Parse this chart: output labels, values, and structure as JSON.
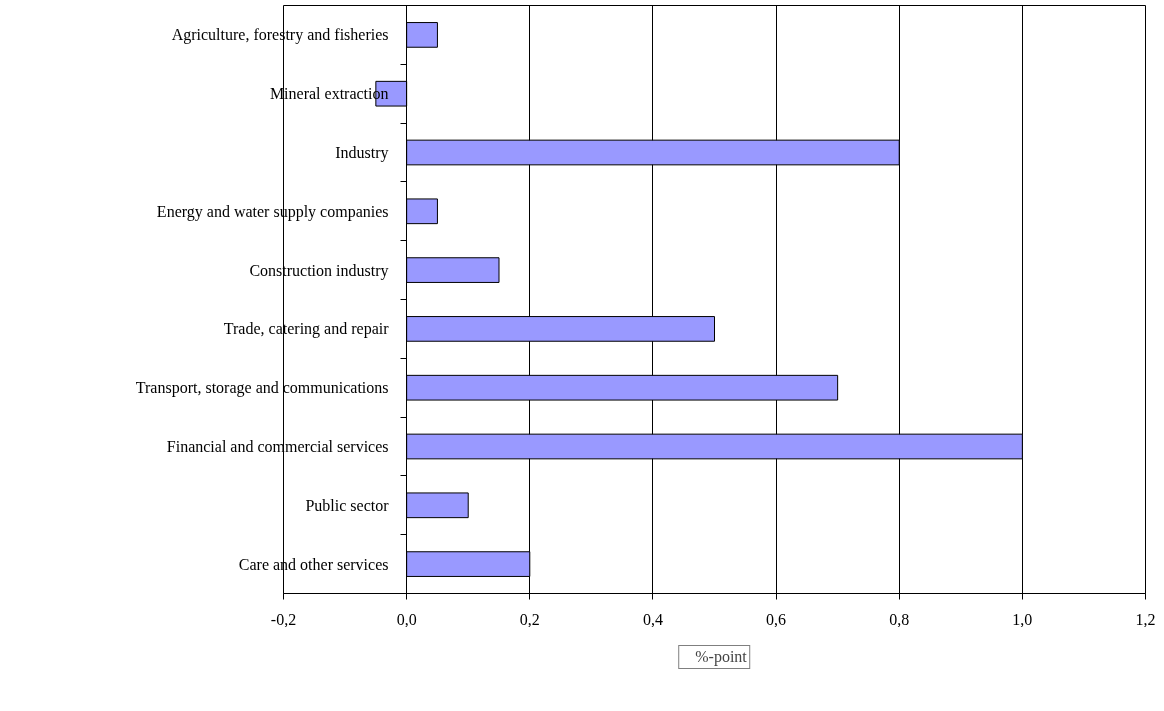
{
  "chart_data": {
    "type": "bar",
    "orientation": "horizontal",
    "categories": [
      "Agriculture, forestry and fisheries",
      "Mineral extraction",
      "Industry",
      "Energy and water supply companies",
      "Construction industry",
      "Trade, catering and repair",
      "Transport, storage and communications",
      "Financial and commercial services",
      "Public sector",
      "Care and other services"
    ],
    "series": [
      {
        "name": "%-point",
        "color": "#9999ff",
        "values": [
          0.05,
          -0.05,
          0.8,
          0.05,
          0.15,
          0.5,
          0.7,
          1.0,
          0.1,
          0.2
        ]
      }
    ],
    "xlim": [
      -0.2,
      1.2
    ],
    "xticks": [
      {
        "value": -0.2,
        "label": "-0,2"
      },
      {
        "value": 0,
        "label": "0,0"
      },
      {
        "value": 0.2,
        "label": "0,2"
      },
      {
        "value": 0.4,
        "label": "0,4"
      },
      {
        "value": 0.6,
        "label": "0,6"
      },
      {
        "value": 0.8,
        "label": "0,8"
      },
      {
        "value": 1.0,
        "label": "1,0"
      },
      {
        "value": 1.2,
        "label": "1,2"
      }
    ],
    "grid": "x",
    "legend": "bottom"
  }
}
